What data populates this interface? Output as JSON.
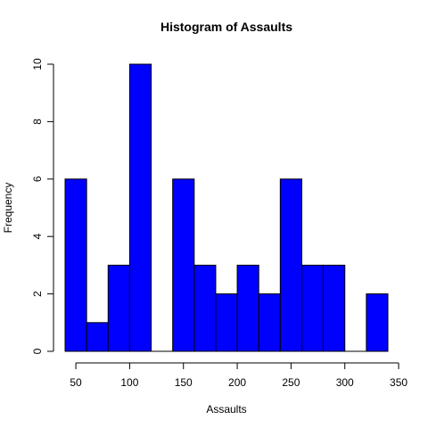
{
  "chart_data": {
    "type": "bar",
    "title": "Histogram of Assaults",
    "xlabel": "Assaults",
    "ylabel": "Frequency",
    "bin_edges": [
      40,
      60,
      80,
      100,
      120,
      140,
      160,
      180,
      200,
      220,
      240,
      260,
      280,
      300,
      320,
      340
    ],
    "values": [
      6,
      1,
      3,
      10,
      0,
      6,
      3,
      2,
      3,
      2,
      6,
      3,
      3,
      0,
      2
    ],
    "xlim": [
      40,
      340
    ],
    "ylim": [
      0,
      10
    ],
    "x_ticks": [
      50,
      100,
      150,
      200,
      250,
      300,
      350
    ],
    "y_ticks": [
      0,
      2,
      4,
      6,
      8,
      10
    ],
    "bar_color": "#0000ff",
    "grid": false,
    "legend": "none"
  }
}
